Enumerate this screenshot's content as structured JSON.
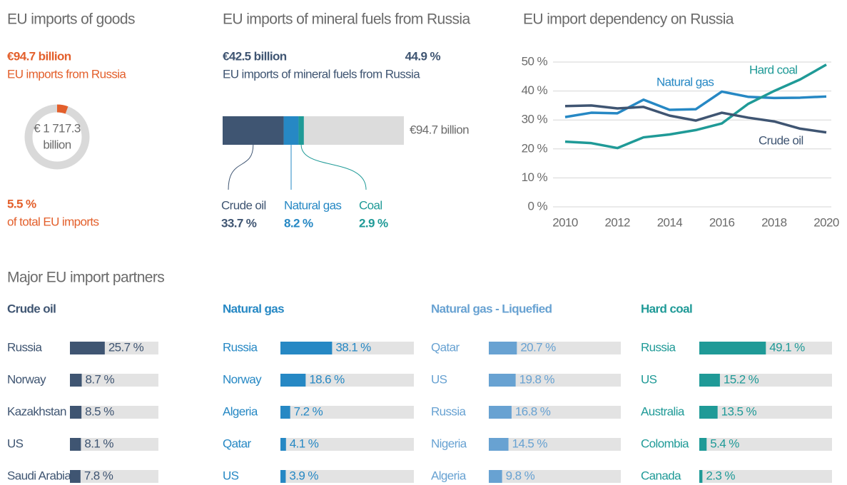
{
  "section_title": "Major EU import partners",
  "chart_data": [
    {
      "type": "donut",
      "title": "EU imports of goods",
      "headline": "€94.7 billion",
      "subtitle": "EU imports from Russia",
      "center_label": [
        "€ 1 717.3",
        "billion"
      ],
      "values": [
        5.5
      ],
      "value_labels": [
        "5.5 %"
      ],
      "note": "of total EU imports",
      "color": "#e35f2b",
      "rest_color": "#d9d9d9"
    },
    {
      "type": "stacked_bar",
      "title": "EU imports of mineral fuels from Russia",
      "headline": "€42.5 billion",
      "headline_share": "44.9 %",
      "subtitle": "EU imports of mineral fuels from Russia",
      "total_label": "€94.7 billion",
      "xlim": [
        0,
        100
      ],
      "series": [
        {
          "name": "Crude oil",
          "color": "#3f5572",
          "values": [
            33.7
          ],
          "value_labels": [
            "33.7 %"
          ]
        },
        {
          "name": "Natural gas",
          "color": "#2688c4",
          "values": [
            8.2
          ],
          "value_labels": [
            "8.2 %"
          ]
        },
        {
          "name": "Coal",
          "color": "#1f9a97",
          "values": [
            2.9
          ],
          "value_labels": [
            "2.9 %"
          ]
        }
      ]
    },
    {
      "type": "line",
      "title": "EU import dependency on Russia",
      "x": [
        2010,
        2011,
        2012,
        2013,
        2014,
        2015,
        2016,
        2017,
        2018,
        2019,
        2020
      ],
      "xlim": [
        2010,
        2020
      ],
      "xticks": [
        2010,
        2012,
        2014,
        2016,
        2018,
        2020
      ],
      "ylim": [
        0,
        50
      ],
      "yticks": [
        {
          "value": 0,
          "label": "0 %"
        },
        {
          "value": 10,
          "label": "10 %"
        },
        {
          "value": 20,
          "label": "20 %"
        },
        {
          "value": 30,
          "label": "30 %"
        },
        {
          "value": 40,
          "label": "40 %"
        },
        {
          "value": 50,
          "label": "50 %"
        }
      ],
      "grid": true,
      "series": [
        {
          "name": "Natural gas",
          "color": "#2688c4",
          "values": [
            31,
            32.5,
            32.3,
            37,
            33.5,
            33.7,
            39.8,
            38,
            37.6,
            37.7,
            38.1
          ]
        },
        {
          "name": "Hard coal",
          "color": "#1f9a97",
          "values": [
            22.5,
            22,
            20.3,
            24,
            25,
            26.5,
            28.8,
            35.5,
            40,
            44,
            49.1
          ]
        },
        {
          "name": "Crude oil",
          "color": "#3f5572",
          "values": [
            34.8,
            35,
            34,
            34.5,
            31.5,
            29.8,
            32.5,
            30.8,
            29.5,
            27,
            25.7
          ]
        }
      ]
    },
    {
      "type": "hbar",
      "title": "Crude oil",
      "color": "#3f5572",
      "xlim": [
        0,
        100
      ],
      "categories": [
        "Russia",
        "Norway",
        "Kazakhstan",
        "US",
        "Saudi Arabia"
      ],
      "values": [
        25.7,
        8.7,
        8.5,
        8.1,
        7.8
      ],
      "value_labels": [
        "25.7 %",
        "8.7 %",
        "8.5 %",
        "8.1 %",
        "7.8 %"
      ]
    },
    {
      "type": "hbar",
      "title": "Natural gas",
      "color": "#2688c4",
      "xlim": [
        0,
        100
      ],
      "categories": [
        "Russia",
        "Norway",
        "Algeria",
        "Qatar",
        "US"
      ],
      "values": [
        38.1,
        18.6,
        7.2,
        4.1,
        3.9
      ],
      "value_labels": [
        "38.1 %",
        "18.6 %",
        "7.2 %",
        "4.1 %",
        "3.9 %"
      ]
    },
    {
      "type": "hbar",
      "title": "Natural gas - Liquefied",
      "color": "#68a2d2",
      "xlim": [
        0,
        100
      ],
      "categories": [
        "Qatar",
        "US",
        "Russia",
        "Nigeria",
        "Algeria"
      ],
      "values": [
        20.7,
        19.8,
        16.8,
        14.5,
        9.8
      ],
      "value_labels": [
        "20.7 %",
        "19.8 %",
        "16.8 %",
        "14.5 %",
        "9.8 %"
      ]
    },
    {
      "type": "hbar",
      "title": "Hard coal",
      "color": "#1f9a97",
      "xlim": [
        0,
        100
      ],
      "categories": [
        "Russia",
        "US",
        "Australia",
        "Colombia",
        "Canada"
      ],
      "values": [
        49.1,
        15.2,
        13.5,
        5.4,
        2.3
      ],
      "value_labels": [
        "49.1 %",
        "15.2 %",
        "13.5 %",
        "5.4 %",
        "2.3 %"
      ]
    }
  ]
}
